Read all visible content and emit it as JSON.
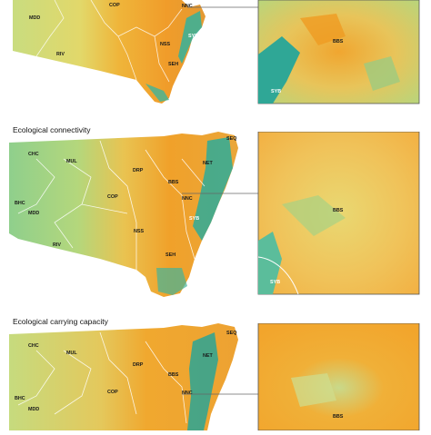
{
  "panels": [
    {
      "title": "",
      "regions": [
        "MDD",
        "COP",
        "NNC",
        "NSS",
        "SYB",
        "RIV",
        "SEH"
      ],
      "inset_regions": [
        "BBS",
        "SYB"
      ]
    },
    {
      "title": "Ecological connectivity",
      "regions": [
        "SEQ",
        "CHC",
        "MUL",
        "NET",
        "DRP",
        "BBS",
        "COP",
        "NNC",
        "BHC",
        "MDD",
        "NSS",
        "SYB",
        "RIV",
        "SEH"
      ],
      "inset_regions": [
        "BBS",
        "SYB"
      ]
    },
    {
      "title": "Ecological carrying capacity",
      "regions": [
        "SEQ",
        "CHC",
        "MUL",
        "NET",
        "DRP",
        "BBS",
        "BHC",
        "NNC",
        "MDD",
        "COP"
      ],
      "inset_regions": [
        "BBS"
      ]
    }
  ],
  "colors": {
    "high": "#f2a029",
    "mid": "#e9d566",
    "low": "#9ccd7e",
    "lowest": "#2ca79a"
  }
}
